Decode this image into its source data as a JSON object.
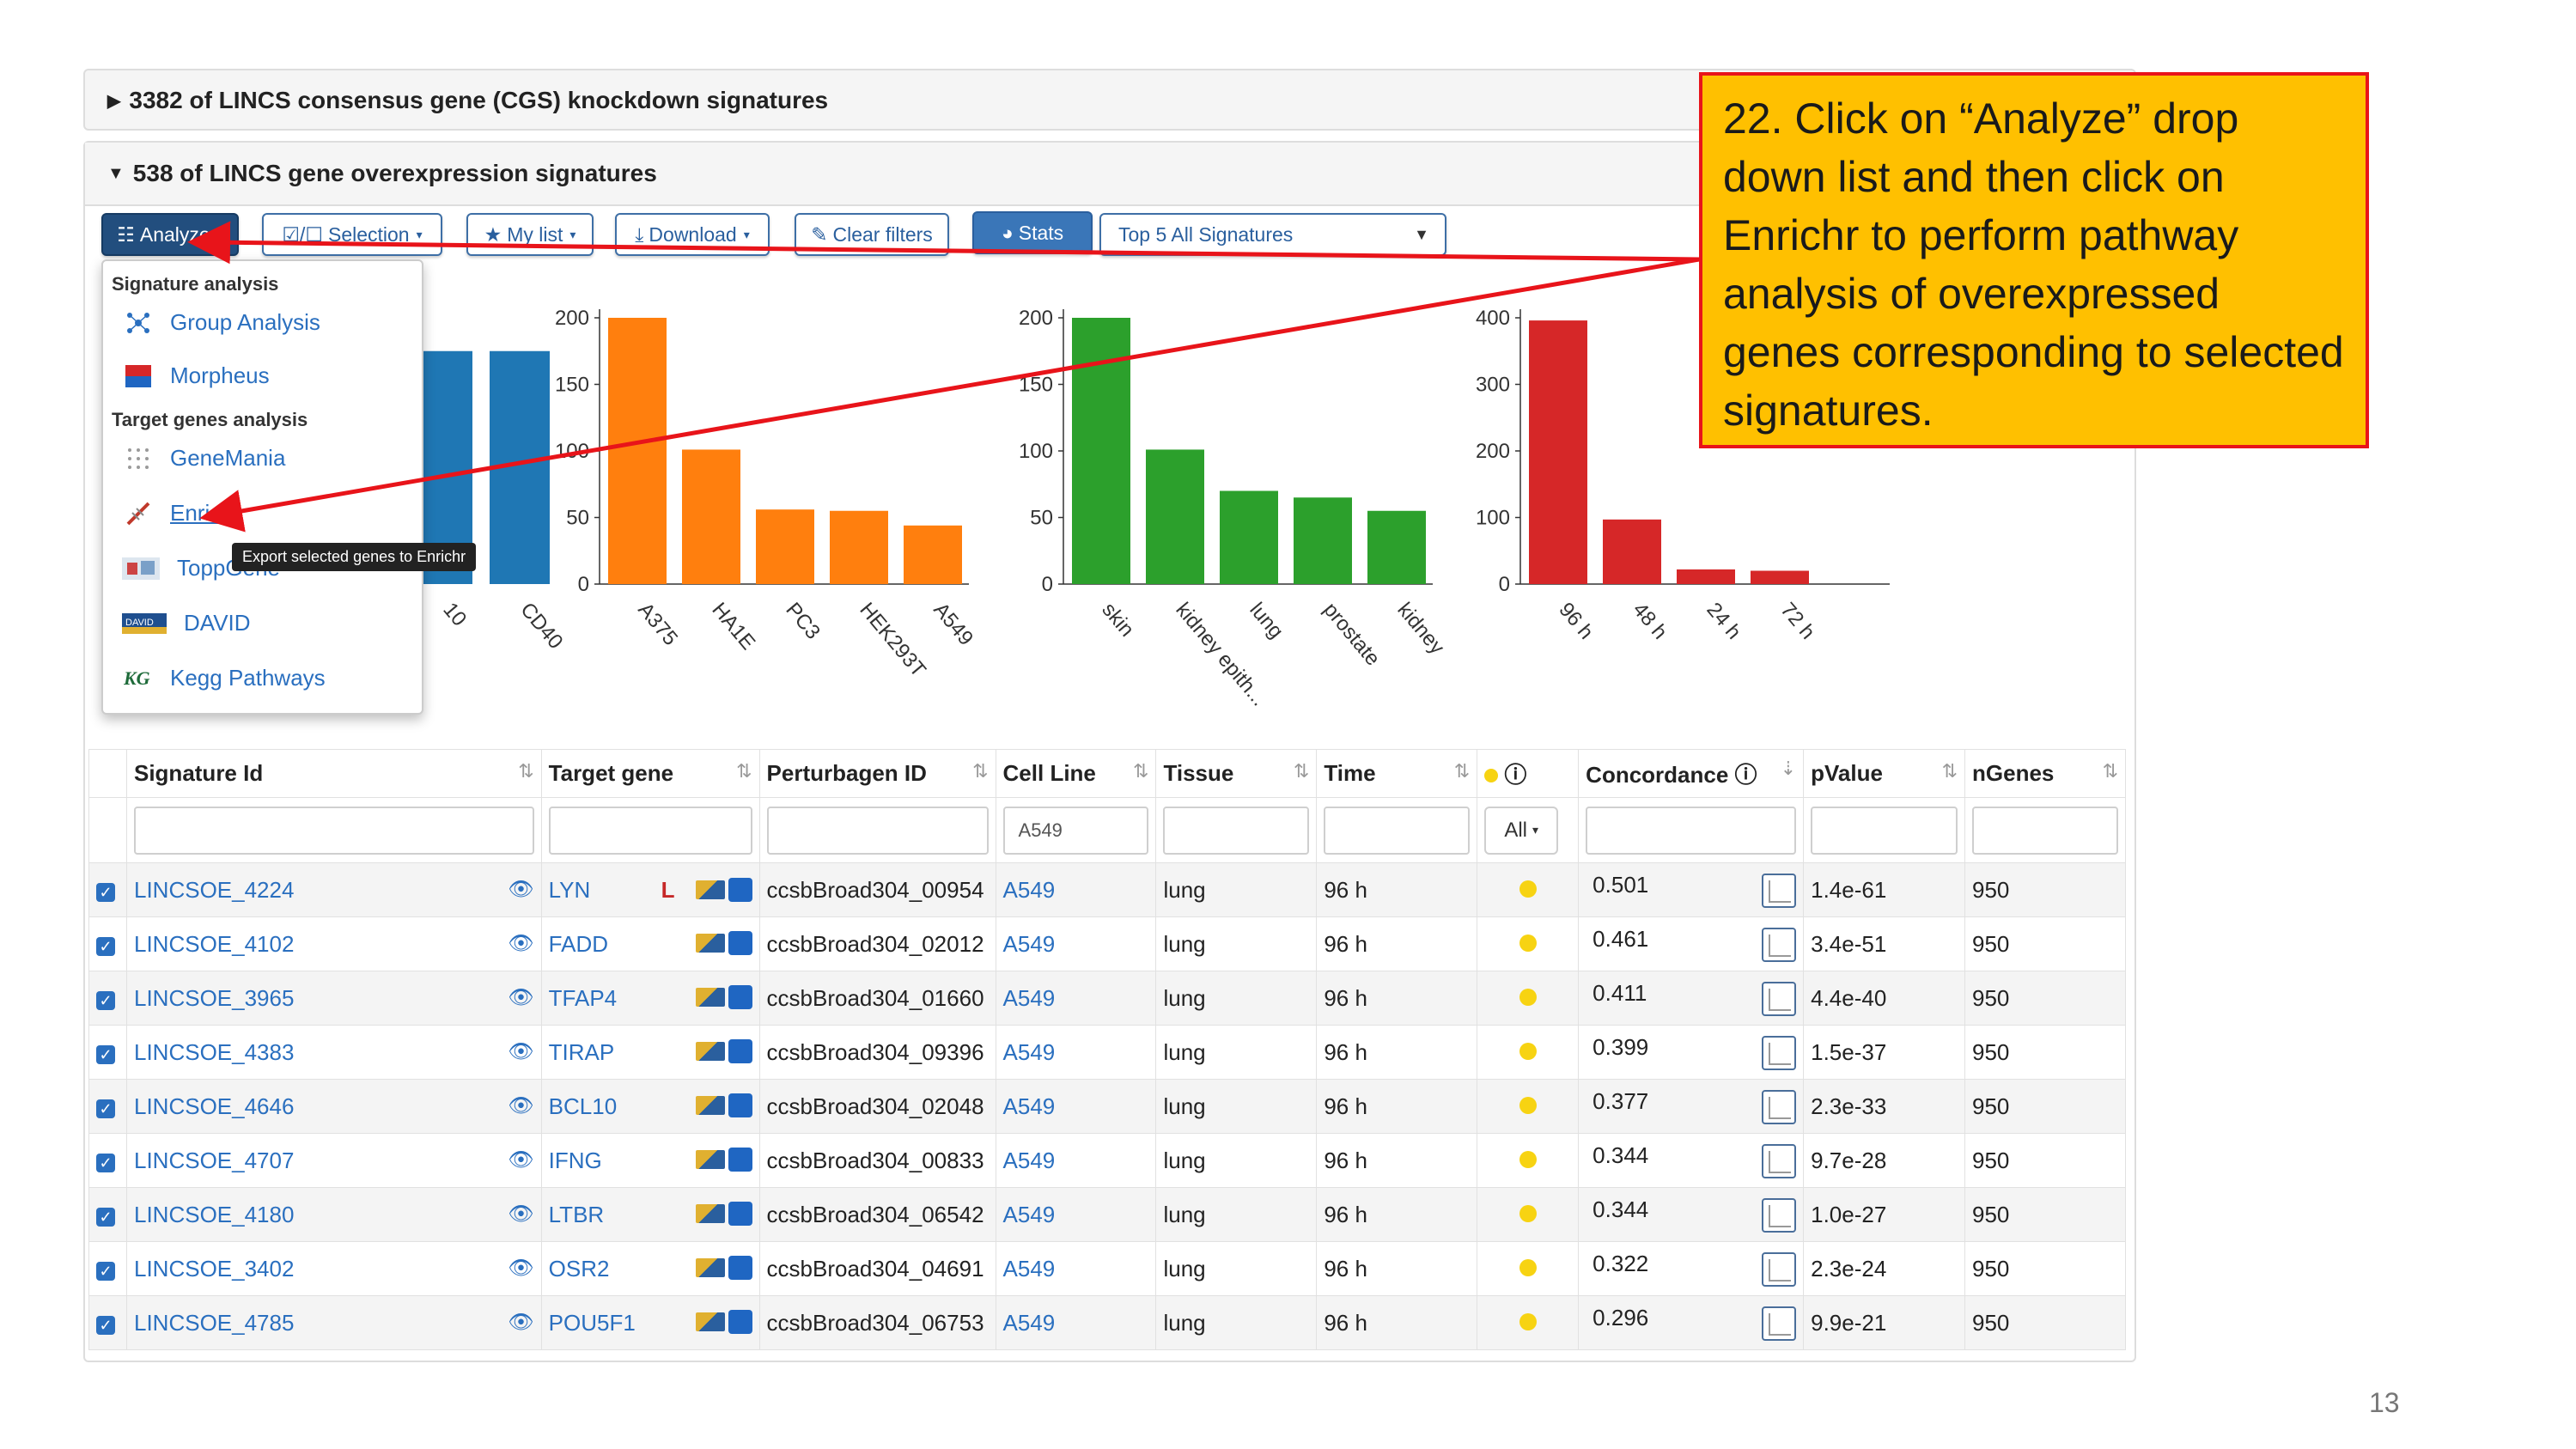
{
  "panels": {
    "knockdown_title": "3382 of LINCS consensus gene (CGS) knockdown signatures",
    "overexpression_title": "538 of LINCS gene overexpression signatures"
  },
  "toolbar": {
    "analyze": "Analyze",
    "selection": "Selection",
    "my_list": "My list",
    "download": "Download",
    "clear_filters": "Clear filters",
    "stats": "Stats",
    "signatures_select": "Top 5 All Signatures"
  },
  "dropdown": {
    "signature_header": "Signature analysis",
    "group_analysis": "Group Analysis",
    "morpheus": "Morpheus",
    "target_header": "Target genes analysis",
    "genemania": "GeneMania",
    "enrichr": "Enrichr",
    "toppgene": "ToppGene",
    "david": "DAVID",
    "kegg": "Kegg Pathways"
  },
  "tooltip": "Export selected genes to Enrichr",
  "chart_data": [
    {
      "type": "bar",
      "categories": [
        "10",
        "CD40"
      ],
      "values": [
        175,
        175
      ],
      "color": "#1f77b4"
    },
    {
      "type": "bar",
      "categories": [
        "A375",
        "HA1E",
        "PC3",
        "HEK293T",
        "A549"
      ],
      "values": [
        200,
        101,
        56,
        55,
        44
      ],
      "yticks": [
        "0",
        "50",
        "100",
        "150",
        "200"
      ],
      "ylim": [
        0,
        200
      ],
      "color": "#ff7f0e"
    },
    {
      "type": "bar",
      "categories": [
        "skin",
        "kidney epith...",
        "lung",
        "prostate",
        "kidney"
      ],
      "values": [
        200,
        101,
        70,
        65,
        55
      ],
      "yticks": [
        "0",
        "50",
        "100",
        "150",
        "200"
      ],
      "ylim": [
        0,
        200
      ],
      "color": "#2ca02c"
    },
    {
      "type": "bar",
      "categories": [
        "96 h",
        "48 h",
        "24 h",
        "72 h"
      ],
      "values": [
        396,
        97,
        22,
        20
      ],
      "yticks": [
        "0",
        "100",
        "200",
        "300",
        "400"
      ],
      "ylim": [
        0,
        400
      ],
      "color": "#d62728"
    }
  ],
  "table": {
    "headers": [
      "Signature Id",
      "Target gene",
      "Perturbagen ID",
      "Cell Line",
      "Tissue",
      "Time",
      "",
      "Concordance",
      "pValue",
      "nGenes"
    ],
    "cell_line_filter": "A549",
    "all_button": "All",
    "rows": [
      {
        "id": "LINCSOE_4224",
        "gene": "LYN",
        "pert": "ccsbBroad304_00954",
        "cell": "A549",
        "tissue": "lung",
        "time": "96 h",
        "conc": "0.501",
        "p": "1.4e-61",
        "n": "950",
        "l_icon": "L"
      },
      {
        "id": "LINCSOE_4102",
        "gene": "FADD",
        "pert": "ccsbBroad304_02012",
        "cell": "A549",
        "tissue": "lung",
        "time": "96 h",
        "conc": "0.461",
        "p": "3.4e-51",
        "n": "950",
        "l_icon": ""
      },
      {
        "id": "LINCSOE_3965",
        "gene": "TFAP4",
        "pert": "ccsbBroad304_01660",
        "cell": "A549",
        "tissue": "lung",
        "time": "96 h",
        "conc": "0.411",
        "p": "4.4e-40",
        "n": "950",
        "l_icon": ""
      },
      {
        "id": "LINCSOE_4383",
        "gene": "TIRAP",
        "pert": "ccsbBroad304_09396",
        "cell": "A549",
        "tissue": "lung",
        "time": "96 h",
        "conc": "0.399",
        "p": "1.5e-37",
        "n": "950",
        "l_icon": ""
      },
      {
        "id": "LINCSOE_4646",
        "gene": "BCL10",
        "pert": "ccsbBroad304_02048",
        "cell": "A549",
        "tissue": "lung",
        "time": "96 h",
        "conc": "0.377",
        "p": "2.3e-33",
        "n": "950",
        "l_icon": ""
      },
      {
        "id": "LINCSOE_4707",
        "gene": "IFNG",
        "pert": "ccsbBroad304_00833",
        "cell": "A549",
        "tissue": "lung",
        "time": "96 h",
        "conc": "0.344",
        "p": "9.7e-28",
        "n": "950",
        "l_icon": ""
      },
      {
        "id": "LINCSOE_4180",
        "gene": "LTBR",
        "pert": "ccsbBroad304_06542",
        "cell": "A549",
        "tissue": "lung",
        "time": "96 h",
        "conc": "0.344",
        "p": "1.0e-27",
        "n": "950",
        "l_icon": ""
      },
      {
        "id": "LINCSOE_3402",
        "gene": "OSR2",
        "pert": "ccsbBroad304_04691",
        "cell": "A549",
        "tissue": "lung",
        "time": "96 h",
        "conc": "0.322",
        "p": "2.3e-24",
        "n": "950",
        "l_icon": ""
      },
      {
        "id": "LINCSOE_4785",
        "gene": "POU5F1",
        "pert": "ccsbBroad304_06753",
        "cell": "A549",
        "tissue": "lung",
        "time": "96 h",
        "conc": "0.296",
        "p": "9.9e-21",
        "n": "950",
        "l_icon": ""
      }
    ]
  },
  "callout": "22. Click on “Analyze” drop down list and then click on Enrichr to perform pathway analysis of overexpressed genes corresponding to selected signatures.",
  "page_number": "13",
  "colors": {
    "accent": "#2a6fbf",
    "callout_bg": "#ffc000",
    "callout_border": "#e8141a",
    "dot": "#f7d312"
  }
}
